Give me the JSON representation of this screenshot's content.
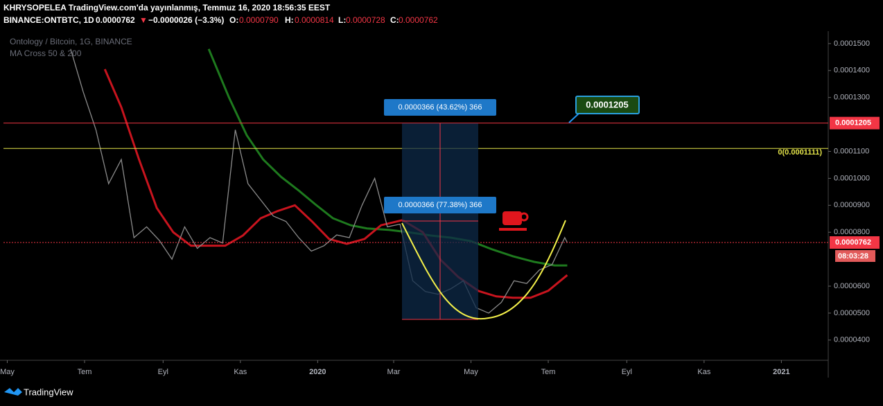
{
  "header": {
    "line1": "KHRYSOPELEA TradingView.com'da yayınlanmış, Temmuz 16, 2020 18:56:35 EEST",
    "symbol": "BINANCE:ONTBTC, 1D",
    "last": "0.0000762",
    "arrow": "▼",
    "change": "−0.0000026 (−3.3%)",
    "o_label": "O:",
    "o": "0.0000790",
    "h_label": "H:",
    "h": "0.0000814",
    "l_label": "L:",
    "l": "0.0000728",
    "c_label": "C:",
    "c": "0.0000762"
  },
  "legend": {
    "pair": "Ontology / Bitcoin, 1G, BINANCE",
    "indicator": "MA Cross 50 & 200"
  },
  "chart_data": {
    "type": "line",
    "xlim": [
      -3,
      648
    ],
    "ylim": [
      3.25e-05,
      0.0001546
    ],
    "xticks": [
      {
        "value": 0,
        "label": "May"
      },
      {
        "value": 61,
        "label": "Tem"
      },
      {
        "value": 123,
        "label": "Eyl"
      },
      {
        "value": 184,
        "label": "Kas"
      },
      {
        "value": 245,
        "label": "2020"
      },
      {
        "value": 305,
        "label": "Mar"
      },
      {
        "value": 366,
        "label": "May"
      },
      {
        "value": 427,
        "label": "Tem"
      },
      {
        "value": 489,
        "label": "Eyl"
      },
      {
        "value": 550,
        "label": "Kas"
      },
      {
        "value": 611,
        "label": "2021"
      }
    ],
    "yticks": [
      {
        "value": 4e-05,
        "label": "0.0000400"
      },
      {
        "value": 5e-05,
        "label": "0.0000500"
      },
      {
        "value": 6e-05,
        "label": "0.0000600"
      },
      {
        "value": 8e-05,
        "label": "0.0000800"
      },
      {
        "value": 9e-05,
        "label": "0.0000900"
      },
      {
        "value": 0.0001,
        "label": "0.0001000"
      },
      {
        "value": 0.00011,
        "label": "0.0001100"
      },
      {
        "value": 0.00013,
        "label": "0.0001300"
      },
      {
        "value": 0.00014,
        "label": "0.0001400"
      },
      {
        "value": 0.00015,
        "label": "0.0001500"
      }
    ],
    "series": [
      {
        "color": "#8c8c8c",
        "x": [
          50,
          60,
          70,
          80,
          90,
          100,
          110,
          120,
          130,
          140,
          150,
          160,
          170,
          180,
          190,
          200,
          210,
          220,
          230,
          240,
          250,
          260,
          270,
          280,
          290,
          300,
          310,
          320,
          330,
          340,
          350,
          360,
          370,
          380,
          390,
          400,
          410,
          420,
          430,
          440,
          442
        ],
        "values": [
          0.000148,
          0.000132,
          0.000118,
          9.8e-05,
          0.000107,
          7.8e-05,
          8.2e-05,
          7.7e-05,
          7e-05,
          8.2e-05,
          7.4e-05,
          7.8e-05,
          7.6e-05,
          0.000118,
          9.8e-05,
          9.2e-05,
          8.6e-05,
          8.4e-05,
          7.8e-05,
          7.3e-05,
          7.5e-05,
          7.9e-05,
          7.8e-05,
          9e-05,
          0.0001,
          8.2e-05,
          8.3e-05,
          6.2e-05,
          5.8e-05,
          5.7e-05,
          5.9e-05,
          6.2e-05,
          5.2e-05,
          5e-05,
          5.4e-05,
          6.2e-05,
          6.1e-05,
          6.6e-05,
          6.8e-05,
          7.8e-05,
          7.62e-05
        ]
      },
      {
        "color": "#c8141e",
        "x": [
          77,
          90,
          104,
          118,
          131,
          145,
          159,
          172,
          186,
          200,
          213,
          227,
          241,
          254,
          268,
          282,
          295,
          312,
          328,
          342,
          356,
          372,
          386,
          399,
          413,
          427,
          442
        ],
        "values": [
          0.0001405,
          0.0001264,
          0.000107,
          8.9e-05,
          8e-05,
          7.5e-05,
          7.5e-05,
          7.5e-05,
          7.88e-05,
          8.52e-05,
          8.78e-05,
          9e-05,
          8.38e-05,
          7.75e-05,
          7.57e-05,
          7.75e-05,
          8.26e-05,
          8.45e-05,
          8e-05,
          6.98e-05,
          6.34e-05,
          5.82e-05,
          5.62e-05,
          5.57e-05,
          5.57e-05,
          5.83e-05,
          6.41e-05
        ]
      },
      {
        "color": "#1e7a1e",
        "x": [
          159,
          175,
          189,
          202,
          216,
          230,
          243,
          257,
          271,
          284,
          301,
          317,
          334,
          350,
          366,
          383,
          399,
          416,
          432,
          442
        ],
        "values": [
          0.000148,
          0.00013,
          0.000116,
          0.000107,
          0.0001006,
          9.55e-05,
          9.04e-05,
          8.52e-05,
          8.26e-05,
          8.14e-05,
          8.09e-05,
          8e-05,
          7.88e-05,
          7.8e-05,
          7.67e-05,
          7.36e-05,
          7.11e-05,
          6.9e-05,
          6.77e-05,
          6.77e-05
        ]
      }
    ],
    "hlines": [
      {
        "value": 0.0001205,
        "color": "#f23645"
      },
      {
        "value": 0.0001111,
        "color": "#e6e64a"
      },
      {
        "value": 7.62e-05,
        "color": "#f23645",
        "dashed": true
      }
    ],
    "fib_label": "0(0.0001111)",
    "timer": "08:03:28",
    "annotations": [
      "0.0000366 (43.62%) 366",
      "0.0000366 (77.38%) 366"
    ]
  },
  "footer": {
    "brand": "TradingView"
  }
}
